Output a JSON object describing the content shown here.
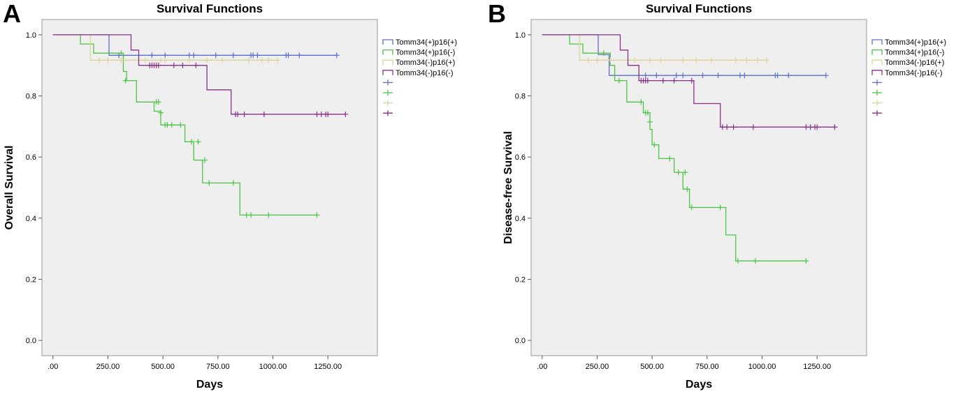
{
  "chart_data": [
    {
      "panel": "A",
      "type": "line",
      "step": true,
      "title": "Survival Functions",
      "xlabel": "Days",
      "ylabel": "Overall Survival",
      "xlim": [
        -50,
        1475
      ],
      "ylim": [
        -0.05,
        1.05
      ],
      "xticks": [
        0,
        250,
        500,
        750,
        1000,
        1250
      ],
      "xtick_labels": [
        ".00",
        "250.00",
        "500.00",
        "750.00",
        "1000.00",
        "1250.00"
      ],
      "yticks": [
        0,
        0.2,
        0.4,
        0.6,
        0.8,
        1.0
      ],
      "ytick_labels": [
        "0.0",
        "0.2",
        "0.4",
        "0.6",
        "0.8",
        "1.0"
      ],
      "grid": false,
      "legend_position": "right",
      "legend_extra_censor_entries": 4,
      "series": [
        {
          "name": "Tomm34(+)p16(+)",
          "color": "#5b6fc9",
          "steps": [
            [
              0,
              1.0
            ],
            [
              255,
              1.0
            ],
            [
              255,
              0.933
            ],
            [
              1290,
              0.933
            ]
          ],
          "censors": [
            [
              300,
              0.933
            ],
            [
              450,
              0.933
            ],
            [
              510,
              0.933
            ],
            [
              620,
              0.933
            ],
            [
              640,
              0.933
            ],
            [
              740,
              0.933
            ],
            [
              820,
              0.933
            ],
            [
              900,
              0.933
            ],
            [
              910,
              0.933
            ],
            [
              930,
              0.933
            ],
            [
              1060,
              0.933
            ],
            [
              1070,
              0.933
            ],
            [
              1120,
              0.933
            ],
            [
              1290,
              0.933
            ]
          ]
        },
        {
          "name": "Tomm34(+)p16(-)",
          "color": "#4cc444",
          "steps": [
            [
              0,
              1.0
            ],
            [
              125,
              1.0
            ],
            [
              125,
              0.97
            ],
            [
              185,
              0.97
            ],
            [
              185,
              0.94
            ],
            [
              320,
              0.94
            ],
            [
              320,
              0.88
            ],
            [
              335,
              0.88
            ],
            [
              335,
              0.85
            ],
            [
              380,
              0.85
            ],
            [
              380,
              0.78
            ],
            [
              460,
              0.78
            ],
            [
              460,
              0.75
            ],
            [
              490,
              0.75
            ],
            [
              490,
              0.705
            ],
            [
              600,
              0.705
            ],
            [
              600,
              0.65
            ],
            [
              640,
              0.65
            ],
            [
              640,
              0.59
            ],
            [
              680,
              0.59
            ],
            [
              680,
              0.515
            ],
            [
              850,
              0.515
            ],
            [
              850,
              0.41
            ],
            [
              1200,
              0.41
            ]
          ],
          "censors": [
            [
              310,
              0.94
            ],
            [
              330,
              0.85
            ],
            [
              470,
              0.78
            ],
            [
              480,
              0.78
            ],
            [
              490,
              0.745
            ],
            [
              510,
              0.705
            ],
            [
              520,
              0.705
            ],
            [
              540,
              0.705
            ],
            [
              580,
              0.705
            ],
            [
              630,
              0.65
            ],
            [
              660,
              0.65
            ],
            [
              690,
              0.59
            ],
            [
              710,
              0.515
            ],
            [
              820,
              0.515
            ],
            [
              880,
              0.41
            ],
            [
              900,
              0.41
            ],
            [
              980,
              0.41
            ],
            [
              1200,
              0.41
            ]
          ]
        },
        {
          "name": "Tomm34(-)p16(+)",
          "color": "#d9d49a",
          "steps": [
            [
              0,
              1.0
            ],
            [
              170,
              1.0
            ],
            [
              170,
              0.917
            ],
            [
              1020,
              0.917
            ]
          ],
          "censors": [
            [
              210,
              0.917
            ],
            [
              250,
              0.917
            ],
            [
              310,
              0.917
            ],
            [
              420,
              0.917
            ],
            [
              490,
              0.917
            ],
            [
              510,
              0.917
            ],
            [
              620,
              0.917
            ],
            [
              700,
              0.917
            ],
            [
              770,
              0.917
            ],
            [
              890,
              0.917
            ],
            [
              950,
              0.917
            ],
            [
              980,
              0.917
            ],
            [
              1020,
              0.917
            ]
          ]
        },
        {
          "name": "Tomm34(-)p16(-)",
          "color": "#8b2f8b",
          "steps": [
            [
              0,
              1.0
            ],
            [
              355,
              1.0
            ],
            [
              355,
              0.95
            ],
            [
              390,
              0.95
            ],
            [
              390,
              0.9
            ],
            [
              700,
              0.9
            ],
            [
              700,
              0.82
            ],
            [
              810,
              0.82
            ],
            [
              810,
              0.74
            ],
            [
              1330,
              0.74
            ]
          ],
          "censors": [
            [
              440,
              0.9
            ],
            [
              450,
              0.9
            ],
            [
              460,
              0.9
            ],
            [
              470,
              0.9
            ],
            [
              480,
              0.9
            ],
            [
              550,
              0.9
            ],
            [
              590,
              0.9
            ],
            [
              650,
              0.9
            ],
            [
              830,
              0.74
            ],
            [
              840,
              0.74
            ],
            [
              870,
              0.74
            ],
            [
              960,
              0.74
            ],
            [
              1200,
              0.74
            ],
            [
              1220,
              0.74
            ],
            [
              1240,
              0.74
            ],
            [
              1250,
              0.74
            ],
            [
              1330,
              0.74
            ]
          ]
        }
      ]
    },
    {
      "panel": "B",
      "type": "line",
      "step": true,
      "title": "Survival Functions",
      "xlabel": "Days",
      "ylabel": "Disease-free Survival",
      "xlim": [
        -50,
        1475
      ],
      "ylim": [
        -0.05,
        1.05
      ],
      "xticks": [
        0,
        250,
        500,
        750,
        1000,
        1250
      ],
      "xtick_labels": [
        ".00",
        "250.00",
        "500.00",
        "750.00",
        "1000.00",
        "1250.00"
      ],
      "yticks": [
        0,
        0.2,
        0.4,
        0.6,
        0.8,
        1.0
      ],
      "ytick_labels": [
        "0.0",
        "0.2",
        "0.4",
        "0.6",
        "0.8",
        "1.0"
      ],
      "grid": false,
      "legend_position": "right",
      "legend_extra_censor_entries": 4,
      "series": [
        {
          "name": "Tomm34(+)p16(+)",
          "color": "#5b6fc9",
          "steps": [
            [
              0,
              1.0
            ],
            [
              255,
              1.0
            ],
            [
              255,
              0.935
            ],
            [
              305,
              0.935
            ],
            [
              305,
              0.867
            ],
            [
              1290,
              0.867
            ]
          ],
          "censors": [
            [
              470,
              0.867
            ],
            [
              520,
              0.867
            ],
            [
              610,
              0.867
            ],
            [
              640,
              0.867
            ],
            [
              730,
              0.867
            ],
            [
              800,
              0.867
            ],
            [
              900,
              0.867
            ],
            [
              920,
              0.867
            ],
            [
              1060,
              0.867
            ],
            [
              1070,
              0.867
            ],
            [
              1120,
              0.867
            ],
            [
              1290,
              0.867
            ]
          ]
        },
        {
          "name": "Tomm34(+)p16(-)",
          "color": "#4cc444",
          "steps": [
            [
              0,
              1.0
            ],
            [
              125,
              1.0
            ],
            [
              125,
              0.97
            ],
            [
              185,
              0.97
            ],
            [
              185,
              0.94
            ],
            [
              310,
              0.94
            ],
            [
              310,
              0.9
            ],
            [
              330,
              0.9
            ],
            [
              330,
              0.85
            ],
            [
              385,
              0.85
            ],
            [
              385,
              0.78
            ],
            [
              460,
              0.78
            ],
            [
              460,
              0.745
            ],
            [
              490,
              0.745
            ],
            [
              490,
              0.69
            ],
            [
              500,
              0.69
            ],
            [
              500,
              0.64
            ],
            [
              530,
              0.64
            ],
            [
              530,
              0.595
            ],
            [
              600,
              0.595
            ],
            [
              600,
              0.55
            ],
            [
              640,
              0.55
            ],
            [
              640,
              0.495
            ],
            [
              670,
              0.495
            ],
            [
              670,
              0.435
            ],
            [
              835,
              0.435
            ],
            [
              835,
              0.345
            ],
            [
              880,
              0.345
            ],
            [
              880,
              0.26
            ],
            [
              1200,
              0.26
            ]
          ],
          "censors": [
            [
              280,
              0.94
            ],
            [
              350,
              0.85
            ],
            [
              450,
              0.78
            ],
            [
              470,
              0.745
            ],
            [
              480,
              0.745
            ],
            [
              490,
              0.715
            ],
            [
              510,
              0.64
            ],
            [
              580,
              0.595
            ],
            [
              620,
              0.55
            ],
            [
              650,
              0.55
            ],
            [
              660,
              0.495
            ],
            [
              680,
              0.435
            ],
            [
              810,
              0.435
            ],
            [
              890,
              0.26
            ],
            [
              970,
              0.26
            ],
            [
              1200,
              0.26
            ]
          ]
        },
        {
          "name": "Tomm34(-)p16(+)",
          "color": "#d9d49a",
          "steps": [
            [
              0,
              1.0
            ],
            [
              170,
              1.0
            ],
            [
              170,
              0.917
            ],
            [
              1020,
              0.917
            ]
          ],
          "censors": [
            [
              210,
              0.917
            ],
            [
              250,
              0.917
            ],
            [
              310,
              0.917
            ],
            [
              420,
              0.917
            ],
            [
              490,
              0.917
            ],
            [
              540,
              0.917
            ],
            [
              640,
              0.917
            ],
            [
              700,
              0.917
            ],
            [
              770,
              0.917
            ],
            [
              880,
              0.917
            ],
            [
              930,
              0.917
            ],
            [
              980,
              0.917
            ],
            [
              1020,
              0.917
            ]
          ]
        },
        {
          "name": "Tomm34(-)p16(-)",
          "color": "#8b2f8b",
          "steps": [
            [
              0,
              1.0
            ],
            [
              355,
              1.0
            ],
            [
              355,
              0.95
            ],
            [
              390,
              0.95
            ],
            [
              390,
              0.9
            ],
            [
              440,
              0.9
            ],
            [
              440,
              0.85
            ],
            [
              690,
              0.85
            ],
            [
              690,
              0.775
            ],
            [
              810,
              0.775
            ],
            [
              810,
              0.698
            ],
            [
              1330,
              0.698
            ]
          ],
          "censors": [
            [
              450,
              0.85
            ],
            [
              460,
              0.85
            ],
            [
              470,
              0.85
            ],
            [
              480,
              0.85
            ],
            [
              550,
              0.85
            ],
            [
              600,
              0.85
            ],
            [
              680,
              0.85
            ],
            [
              820,
              0.698
            ],
            [
              840,
              0.698
            ],
            [
              870,
              0.698
            ],
            [
              960,
              0.698
            ],
            [
              1200,
              0.698
            ],
            [
              1220,
              0.698
            ],
            [
              1240,
              0.698
            ],
            [
              1250,
              0.698
            ],
            [
              1330,
              0.698
            ]
          ]
        }
      ]
    }
  ]
}
